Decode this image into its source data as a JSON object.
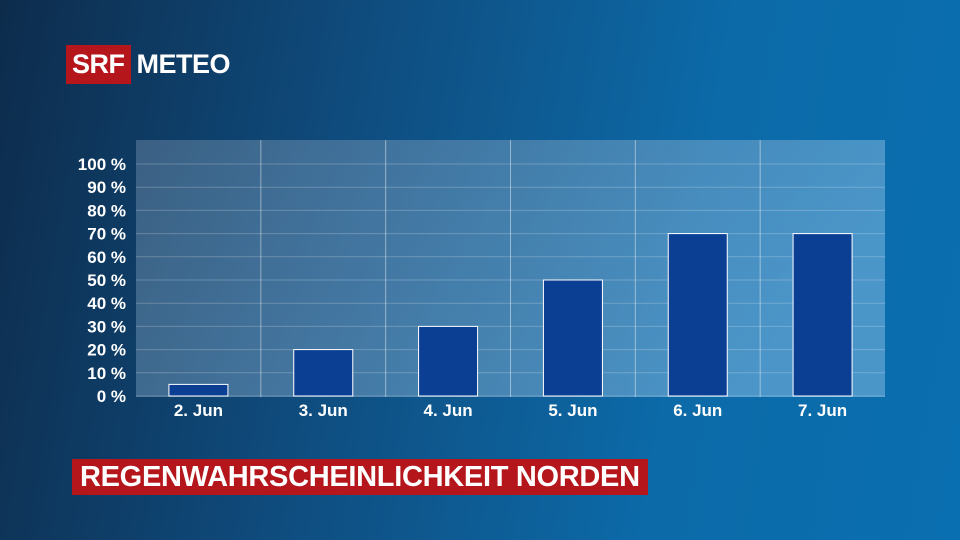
{
  "brand": {
    "logo_box": "SRF",
    "logo_text": "METEO"
  },
  "colors": {
    "bar": "#0b3f93",
    "banner": "#b4161b"
  },
  "chart_data": {
    "type": "bar",
    "title": "REGENWAHRSCHEINLICHKEIT NORDEN",
    "xlabel": "",
    "ylabel": "",
    "categories": [
      "2. Jun",
      "3. Jun",
      "4. Jun",
      "5. Jun",
      "6. Jun",
      "7. Jun"
    ],
    "values": [
      5,
      20,
      30,
      50,
      70,
      70
    ],
    "ylim": [
      0,
      110
    ],
    "yticks": [
      "0 %",
      "10 %",
      "20 %",
      "30 %",
      "40 %",
      "50 %",
      "60 %",
      "70 %",
      "80 %",
      "90 %",
      "100 %"
    ],
    "grid": true,
    "legend": "none"
  }
}
